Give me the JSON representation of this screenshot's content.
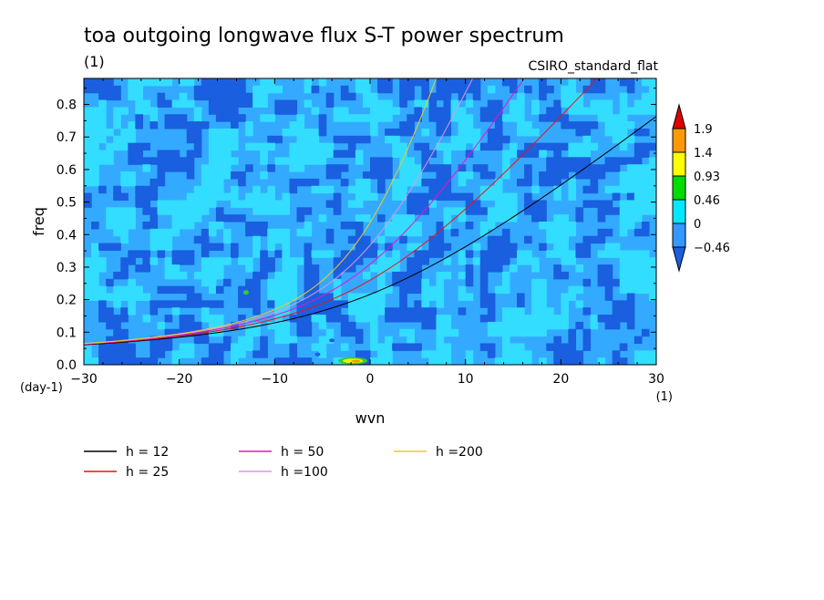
{
  "title": "toa outgoing longwave flux S-T power spectrum",
  "title_units": "(1)",
  "model": "CSIRO_standard_flat",
  "chart_data": {
    "type": "heatmap",
    "xlabel": "wvn",
    "ylabel": "freq",
    "x_units": "(1)",
    "y_units": "(day-1)",
    "xlim": [
      -30,
      30
    ],
    "ylim": [
      0,
      0.88
    ],
    "xticks": [
      -30,
      -20,
      -10,
      0,
      10,
      20,
      30
    ],
    "yticks": [
      0.0,
      0.1,
      0.2,
      0.3,
      0.4,
      0.5,
      0.6,
      0.7,
      0.8
    ],
    "xtick_labels": [
      "-30",
      "-20",
      "-10",
      "0",
      "10",
      "20",
      "30"
    ],
    "ytick_labels": [
      "0.0",
      "0.1",
      "0.2",
      "0.3",
      "0.4",
      "0.5",
      "0.6",
      "0.7",
      "0.8"
    ],
    "colorbar": {
      "labels": [
        "1.9",
        "1.4",
        "0.93",
        "0.46",
        "0",
        "-0.46"
      ],
      "colors": [
        "#e00000",
        "#ff9900",
        "#ffff00",
        "#00dd00",
        "#00e8ff",
        "#3399ff",
        "#1a5fe0"
      ]
    },
    "field_colors": {
      "background": "#33aaff",
      "light": "#33ddff",
      "dark": "#1a5fe0",
      "green": "#33cc33",
      "yellow": "#ffee00",
      "orange": "#ff9900"
    },
    "series": [
      {
        "name": "h = 12",
        "equivalent_depth": 12,
        "color": "#000000"
      },
      {
        "name": "h = 25",
        "equivalent_depth": 25,
        "color": "#ee1111"
      },
      {
        "name": "h = 50",
        "equivalent_depth": 50,
        "color": "#ee11cc"
      },
      {
        "name": "h =100",
        "equivalent_depth": 100,
        "color": "#dd99dd"
      },
      {
        "name": "h =200",
        "equivalent_depth": 200,
        "color": "#eecc22"
      }
    ]
  }
}
